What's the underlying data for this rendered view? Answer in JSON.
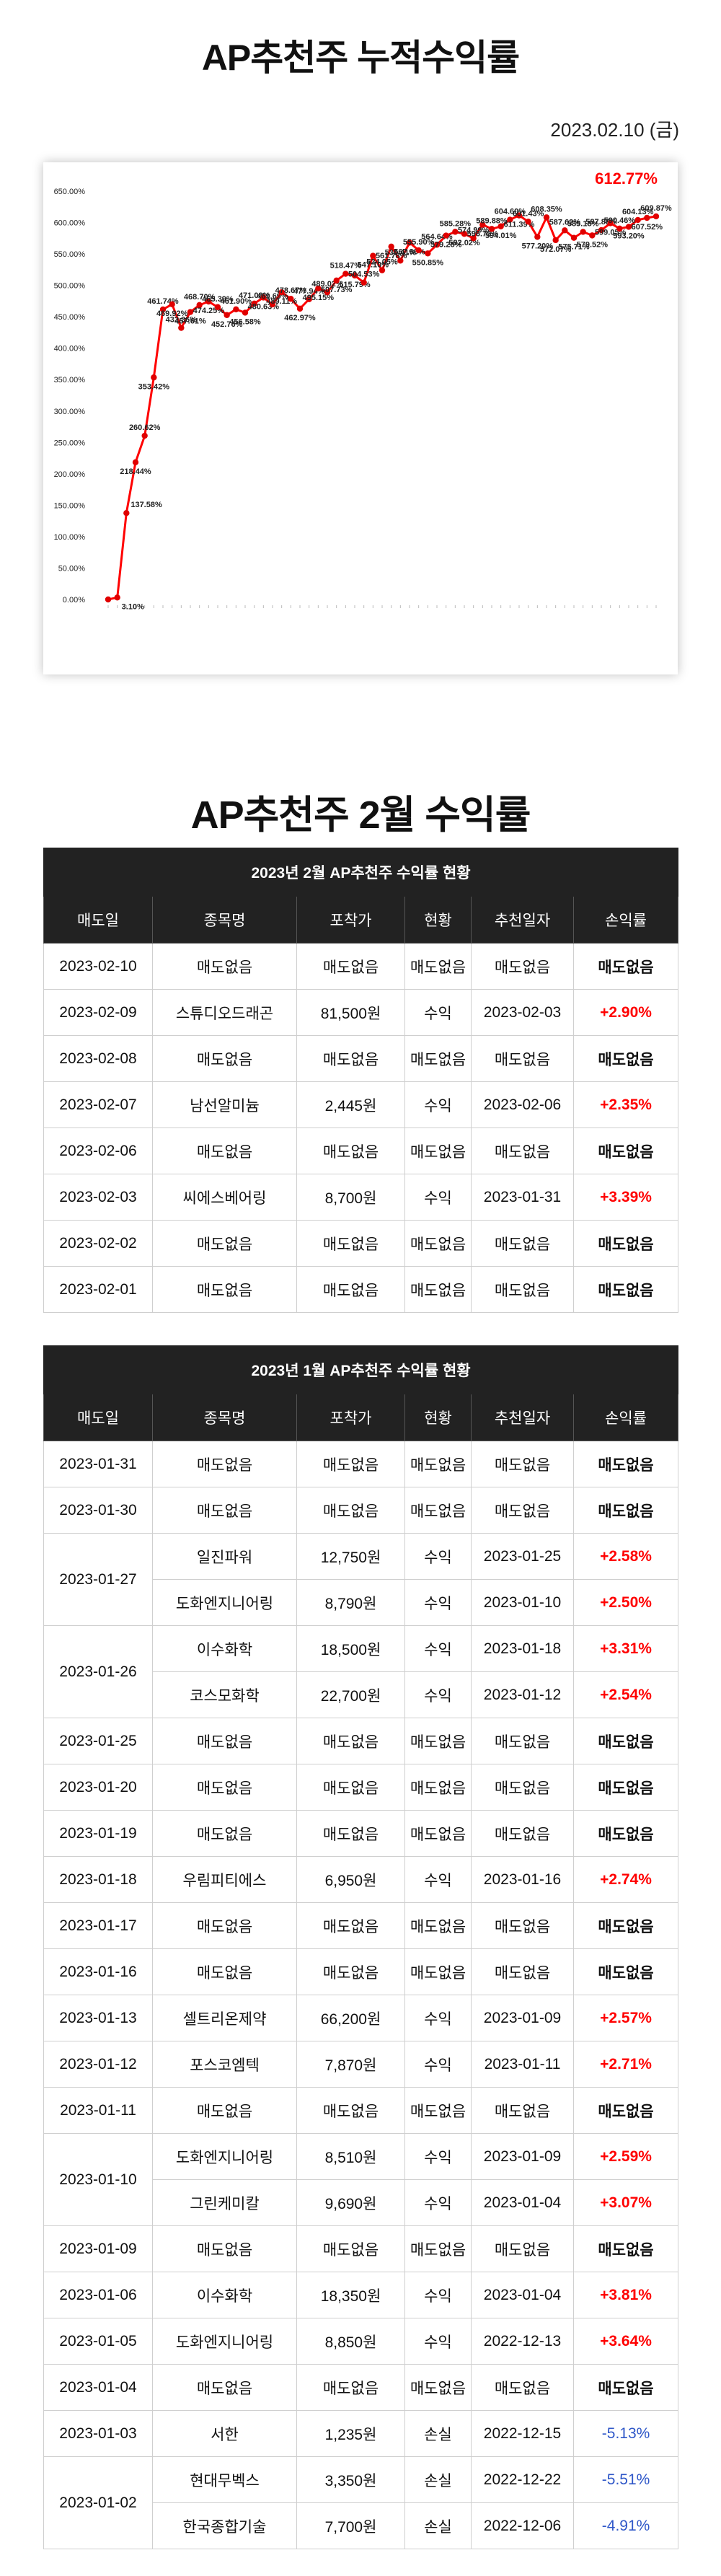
{
  "header": {
    "title": "AP추천주 누적수익률",
    "date": "2023.02.10 (금)"
  },
  "colors": {
    "line": "#ff0000",
    "marker": "#e00000",
    "table_header": "#222222",
    "positive": "#ff0000",
    "negative": "#2f57c8"
  },
  "chart_data": {
    "type": "line",
    "title": "",
    "xlabel": "",
    "ylabel": "",
    "ylim": [
      0,
      650
    ],
    "y_tick_step": 50,
    "y_tick_suffix": "%",
    "grid": false,
    "legend": "none",
    "highlight_label": "612.77%",
    "series": [
      {
        "values": [
          0,
          3.1,
          137.58,
          218.44,
          260.62,
          353.42,
          461.74,
          469.92,
          432.36,
          457.61,
          468.7,
          474.25,
          465.39,
          452.76,
          461.9,
          456.58,
          471.08,
          480.63,
          469.69,
          489.11,
          478.67,
          462.97,
          477.94,
          495.15,
          489.02,
          507.73,
          518.47,
          515.79,
          504.53,
          547.1,
          524.05,
          561.78,
          539.41,
          567.96,
          555.9,
          550.85,
          564.64,
          579.28,
          585.28,
          582.02,
          574.99,
          596.72,
          589.88,
          594.01,
          604.6,
          611.39,
          601.43,
          577.2,
          608.35,
          572.07,
          587.62,
          575.71,
          585.18,
          579.52,
          587.89,
          599.05,
          590.46,
          593.2,
          604.13,
          607.52,
          609.87
        ],
        "labels": [
          "",
          "3.10%",
          "137.58%",
          "218.44%",
          "260.62%",
          "353.42%",
          "461.74%",
          "469.92%",
          "432.36%",
          "457.61%",
          "468.70%",
          "474.25%",
          "465.39%",
          "452.76%",
          "461.90%",
          "456.58%",
          "471.08%",
          "480.63%",
          "469.69%",
          "489.11%",
          "478.67%",
          "462.97%",
          "477.94%",
          "495.15%",
          "489.02%",
          "507.73%",
          "518.47%",
          "515.79%",
          "504.53%",
          "547.10%",
          "524.05%",
          "561.78%",
          "539.41%",
          "567.96%",
          "555.90%",
          "550.85%",
          "564.64%",
          "579.28%",
          "585.28%",
          "582.02%",
          "574.99%",
          "596.72%",
          "589.88%",
          "594.01%",
          "604.60%",
          "611.39%",
          "601.43%",
          "577.20%",
          "608.35%",
          "572.07%",
          "587.62%",
          "575.71%",
          "585.18%",
          "579.52%",
          "587.89%",
          "599.05%",
          "590.46%",
          "593.20%",
          "604.13%",
          "607.52%",
          "609.87%"
        ]
      }
    ]
  },
  "feb": {
    "section_title": "AP추천주 2월 수익률",
    "caption": "2023년 2월 AP추천주 수익률 현황",
    "columns": [
      "매도일",
      "종목명",
      "포착가",
      "현황",
      "추천일자",
      "손익률"
    ],
    "rows": [
      {
        "date": "2023-02-10",
        "name": "매도없음",
        "price": "매도없음",
        "status": "매도없음",
        "rec": "매도없음",
        "ret": "매도없음"
      },
      {
        "date": "2023-02-09",
        "name": "스튜디오드래곤",
        "price": "81,500원",
        "status": "수익",
        "rec": "2023-02-03",
        "ret": "+2.90%"
      },
      {
        "date": "2023-02-08",
        "name": "매도없음",
        "price": "매도없음",
        "status": "매도없음",
        "rec": "매도없음",
        "ret": "매도없음"
      },
      {
        "date": "2023-02-07",
        "name": "남선알미늄",
        "price": "2,445원",
        "status": "수익",
        "rec": "2023-02-06",
        "ret": "+2.35%"
      },
      {
        "date": "2023-02-06",
        "name": "매도없음",
        "price": "매도없음",
        "status": "매도없음",
        "rec": "매도없음",
        "ret": "매도없음"
      },
      {
        "date": "2023-02-03",
        "name": "씨에스베어링",
        "price": "8,700원",
        "status": "수익",
        "rec": "2023-01-31",
        "ret": "+3.39%"
      },
      {
        "date": "2023-02-02",
        "name": "매도없음",
        "price": "매도없음",
        "status": "매도없음",
        "rec": "매도없음",
        "ret": "매도없음"
      },
      {
        "date": "2023-02-01",
        "name": "매도없음",
        "price": "매도없음",
        "status": "매도없음",
        "rec": "매도없음",
        "ret": "매도없음"
      }
    ]
  },
  "jan": {
    "caption": "2023년 1월 AP추천주 수익률 현황",
    "columns": [
      "매도일",
      "종목명",
      "포착가",
      "현황",
      "추천일자",
      "손익률"
    ],
    "rows": [
      {
        "date": "2023-01-31",
        "name": "매도없음",
        "price": "매도없음",
        "status": "매도없음",
        "rec": "매도없음",
        "ret": "매도없음"
      },
      {
        "date": "2023-01-30",
        "name": "매도없음",
        "price": "매도없음",
        "status": "매도없음",
        "rec": "매도없음",
        "ret": "매도없음"
      },
      {
        "date": "2023-01-27",
        "name": "일진파워",
        "price": "12,750원",
        "status": "수익",
        "rec": "2023-01-25",
        "ret": "+2.58%",
        "span": 2
      },
      {
        "date": "",
        "name": "도화엔지니어링",
        "price": "8,790원",
        "status": "수익",
        "rec": "2023-01-10",
        "ret": "+2.50%",
        "cont": true
      },
      {
        "date": "2023-01-26",
        "name": "이수화학",
        "price": "18,500원",
        "status": "수익",
        "rec": "2023-01-18",
        "ret": "+3.31%",
        "span": 2
      },
      {
        "date": "",
        "name": "코스모화학",
        "price": "22,700원",
        "status": "수익",
        "rec": "2023-01-12",
        "ret": "+2.54%",
        "cont": true
      },
      {
        "date": "2023-01-25",
        "name": "매도없음",
        "price": "매도없음",
        "status": "매도없음",
        "rec": "매도없음",
        "ret": "매도없음"
      },
      {
        "date": "2023-01-20",
        "name": "매도없음",
        "price": "매도없음",
        "status": "매도없음",
        "rec": "매도없음",
        "ret": "매도없음"
      },
      {
        "date": "2023-01-19",
        "name": "매도없음",
        "price": "매도없음",
        "status": "매도없음",
        "rec": "매도없음",
        "ret": "매도없음"
      },
      {
        "date": "2023-01-18",
        "name": "우림피티에스",
        "price": "6,950원",
        "status": "수익",
        "rec": "2023-01-16",
        "ret": "+2.74%"
      },
      {
        "date": "2023-01-17",
        "name": "매도없음",
        "price": "매도없음",
        "status": "매도없음",
        "rec": "매도없음",
        "ret": "매도없음"
      },
      {
        "date": "2023-01-16",
        "name": "매도없음",
        "price": "매도없음",
        "status": "매도없음",
        "rec": "매도없음",
        "ret": "매도없음"
      },
      {
        "date": "2023-01-13",
        "name": "셀트리온제약",
        "price": "66,200원",
        "status": "수익",
        "rec": "2023-01-09",
        "ret": "+2.57%"
      },
      {
        "date": "2023-01-12",
        "name": "포스코엠텍",
        "price": "7,870원",
        "status": "수익",
        "rec": "2023-01-11",
        "ret": "+2.71%"
      },
      {
        "date": "2023-01-11",
        "name": "매도없음",
        "price": "매도없음",
        "status": "매도없음",
        "rec": "매도없음",
        "ret": "매도없음"
      },
      {
        "date": "2023-01-10",
        "name": "도화엔지니어링",
        "price": "8,510원",
        "status": "수익",
        "rec": "2023-01-09",
        "ret": "+2.59%",
        "span": 2
      },
      {
        "date": "",
        "name": "그린케미칼",
        "price": "9,690원",
        "status": "수익",
        "rec": "2023-01-04",
        "ret": "+3.07%",
        "cont": true
      },
      {
        "date": "2023-01-09",
        "name": "매도없음",
        "price": "매도없음",
        "status": "매도없음",
        "rec": "매도없음",
        "ret": "매도없음"
      },
      {
        "date": "2023-01-06",
        "name": "이수화학",
        "price": "18,350원",
        "status": "수익",
        "rec": "2023-01-04",
        "ret": "+3.81%"
      },
      {
        "date": "2023-01-05",
        "name": "도화엔지니어링",
        "price": "8,850원",
        "status": "수익",
        "rec": "2022-12-13",
        "ret": "+3.64%"
      },
      {
        "date": "2023-01-04",
        "name": "매도없음",
        "price": "매도없음",
        "status": "매도없음",
        "rec": "매도없음",
        "ret": "매도없음"
      },
      {
        "date": "2023-01-03",
        "name": "서한",
        "price": "1,235원",
        "status": "손실",
        "rec": "2022-12-15",
        "ret": "-5.13%"
      },
      {
        "date": "2023-01-02",
        "name": "현대무벡스",
        "price": "3,350원",
        "status": "손실",
        "rec": "2022-12-22",
        "ret": "-5.51%",
        "span": 2
      },
      {
        "date": "",
        "name": "한국종합기술",
        "price": "7,700원",
        "status": "손실",
        "rec": "2022-12-06",
        "ret": "-4.91%",
        "cont": true
      }
    ]
  }
}
